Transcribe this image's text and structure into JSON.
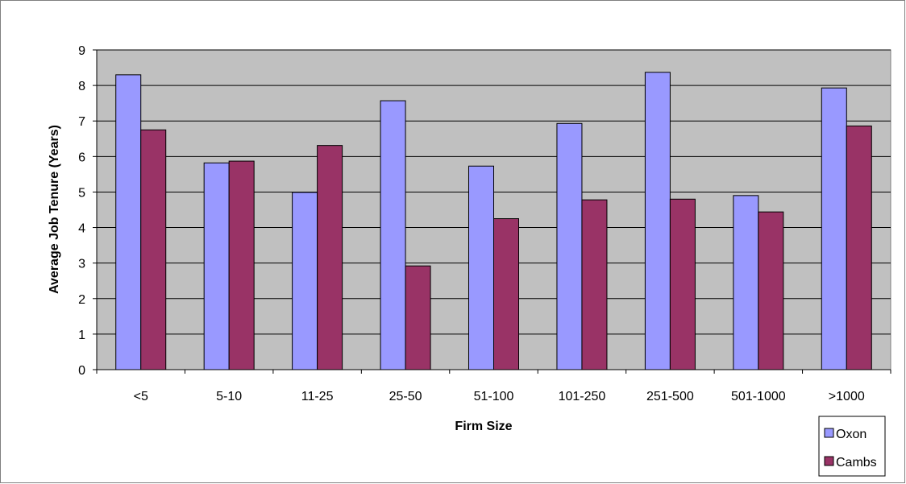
{
  "chart_data": {
    "type": "bar",
    "title": "",
    "xlabel": "Firm Size",
    "ylabel": "Average Job Tenure (Years)",
    "categories": [
      "<5",
      "5-10",
      "11-25",
      "25-50",
      "51-100",
      "101-250",
      "251-500",
      "501-1000",
      ">1000"
    ],
    "ylim": [
      0,
      9
    ],
    "yticks": [
      0,
      1,
      2,
      3,
      4,
      5,
      6,
      7,
      8,
      9
    ],
    "grid": true,
    "legend_position": "bottom-right",
    "plot_background": "#C0C0C0",
    "series": [
      {
        "name": "Oxon",
        "color": "#9999FF",
        "values": [
          8.3,
          5.82,
          4.99,
          7.57,
          5.73,
          6.93,
          8.37,
          4.9,
          7.93
        ]
      },
      {
        "name": "Cambs",
        "color": "#993366",
        "values": [
          6.75,
          5.87,
          6.31,
          2.92,
          4.25,
          4.78,
          4.8,
          4.44,
          6.86
        ]
      }
    ]
  }
}
